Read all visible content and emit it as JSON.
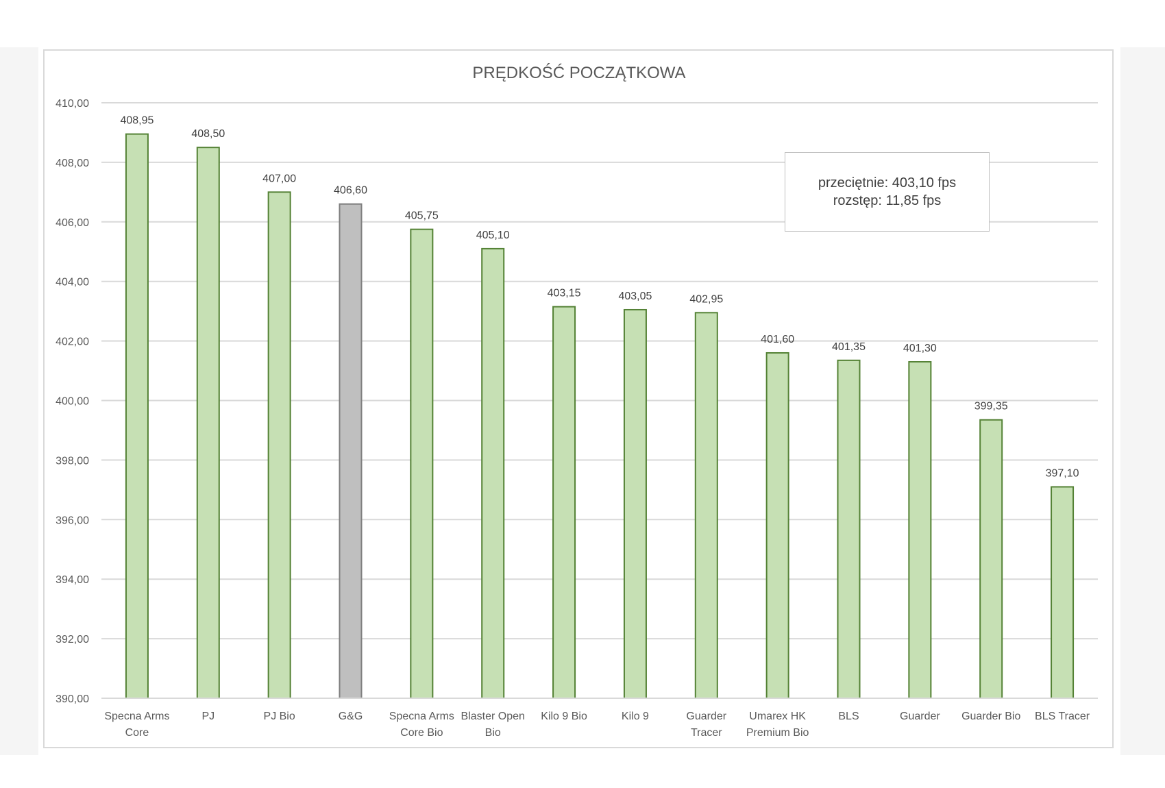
{
  "chart_data": {
    "type": "bar",
    "title": "PRĘDKOŚĆ POCZĄTKOWA",
    "xlabel": "",
    "ylabel": "",
    "ylim": [
      390,
      410
    ],
    "yticks": [
      "390,00",
      "392,00",
      "394,00",
      "396,00",
      "398,00",
      "400,00",
      "402,00",
      "404,00",
      "406,00",
      "408,00",
      "410,00"
    ],
    "grid": true,
    "categories": [
      [
        "Specna Arms",
        "Core"
      ],
      [
        "PJ"
      ],
      [
        "PJ Bio"
      ],
      [
        "G&G"
      ],
      [
        "Specna Arms",
        "Core Bio"
      ],
      [
        "Blaster Open",
        "Bio"
      ],
      [
        "Kilo 9 Bio"
      ],
      [
        "Kilo 9"
      ],
      [
        "Guarder",
        "Tracer"
      ],
      [
        "Umarex HK",
        "Premium Bio"
      ],
      [
        "BLS"
      ],
      [
        "Guarder"
      ],
      [
        "Guarder Bio"
      ],
      [
        "BLS Tracer"
      ]
    ],
    "values": [
      408.95,
      408.5,
      407.0,
      406.6,
      405.75,
      405.1,
      403.15,
      403.05,
      402.95,
      401.6,
      401.35,
      401.3,
      399.35,
      397.1
    ],
    "value_labels": [
      "408,95",
      "408,50",
      "407,00",
      "406,60",
      "405,75",
      "405,10",
      "403,15",
      "403,05",
      "402,95",
      "401,60",
      "401,35",
      "401,30",
      "399,35",
      "397,10"
    ],
    "highlight_index": 3,
    "colors": {
      "bar_fill": "#c6e0b4",
      "bar_stroke": "#548235",
      "highlight_fill": "#bfbfbf",
      "highlight_stroke": "#7f7f7f",
      "grid": "#d9d9d9",
      "text": "#595959"
    }
  },
  "annotation": {
    "line1": "przeciętnie: 403,10 fps",
    "line2": "rozstęp: 11,85 fps"
  }
}
